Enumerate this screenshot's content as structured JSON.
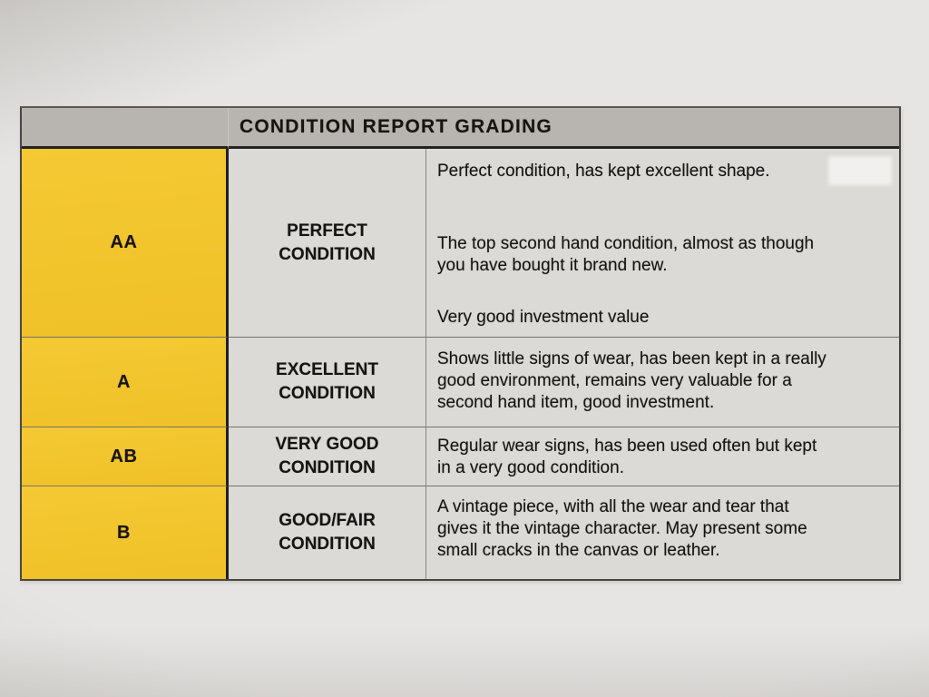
{
  "document": {
    "table": {
      "header": "CONDITION REPORT GRADING",
      "rows": [
        {
          "grade": "AA",
          "condition": "PERFECT\nCONDITION",
          "paragraphs": [
            "Perfect condition, has kept excellent shape.",
            "The top second hand condition, almost as though\nyou have bought it brand new.",
            "Very good investment value"
          ]
        },
        {
          "grade": "A",
          "condition": "EXCELLENT\nCONDITION",
          "paragraphs": [
            "Shows little signs of wear, has been kept in a really\ngood environment, remains very valuable for a\nsecond hand item, good investment."
          ]
        },
        {
          "grade": "AB",
          "condition": "VERY GOOD\nCONDITION",
          "paragraphs": [
            "Regular wear signs, has been used often but kept\nin a very good condition."
          ]
        },
        {
          "grade": "B",
          "condition": "GOOD/FAIR\nCONDITION",
          "paragraphs": [
            "A vintage piece, with all the wear and tear that\ngives it the vintage character. May present some\nsmall cracks in the canvas or leather."
          ]
        }
      ]
    },
    "colors": {
      "grade_cell_yellow": "#f2c52d",
      "header_gray": "#b8b4af",
      "cell_gray": "#dcdad7",
      "text_black": "#161412"
    }
  }
}
